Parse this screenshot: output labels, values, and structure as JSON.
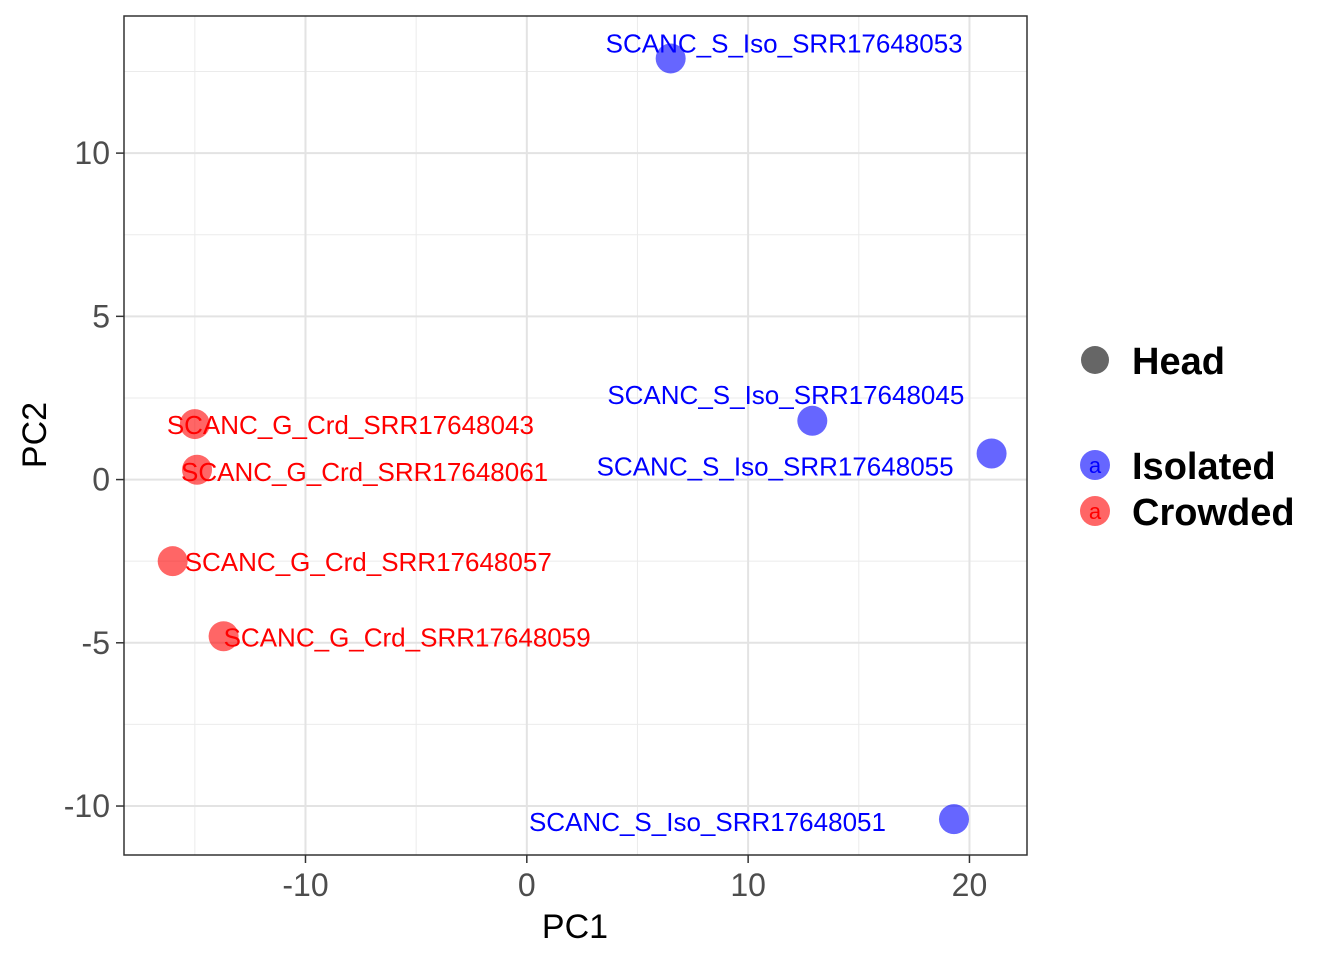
{
  "chart_data": {
    "type": "scatter",
    "xlabel": "PC1",
    "ylabel": "PC2",
    "xlim": [
      -18.2,
      22.6
    ],
    "ylim": [
      -11.5,
      14.2
    ],
    "x_ticks": [
      -10,
      0,
      10,
      20
    ],
    "x_tick_labels": [
      "-10",
      "0",
      "10",
      "20"
    ],
    "y_ticks": [
      -10,
      -5,
      0,
      5,
      10
    ],
    "y_tick_labels": [
      "-10",
      "-5",
      "0",
      "5",
      "10"
    ],
    "grid": true,
    "series": [
      {
        "name": "Isolated",
        "color": "#0000ff",
        "points": [
          {
            "label": "SCANC_S_Iso_SRR17648053",
            "x": 6.5,
            "y": 12.9
          },
          {
            "label": "SCANC_S_Iso_SRR17648045",
            "x": 12.9,
            "y": 1.8
          },
          {
            "label": "SCANC_S_Iso_SRR17648055",
            "x": 21.0,
            "y": 0.8
          },
          {
            "label": "SCANC_S_Iso_SRR17648051",
            "x": 19.3,
            "y": -10.4
          }
        ]
      },
      {
        "name": "Crowded",
        "color": "#ff0000",
        "points": [
          {
            "label": "SCANC_G_Crd_SRR17648043",
            "x": -15.0,
            "y": 1.7
          },
          {
            "label": "SCANC_G_Crd_SRR17648061",
            "x": -14.9,
            "y": 0.3
          },
          {
            "label": "SCANC_G_Crd_SRR17648057",
            "x": -16.0,
            "y": -2.5
          },
          {
            "label": "SCANC_G_Crd_SRR17648059",
            "x": -13.7,
            "y": -4.8
          }
        ]
      }
    ],
    "legend": {
      "position": "right",
      "shape_entry": {
        "label": "Head",
        "color": "#666666"
      },
      "color_entries": [
        {
          "label": "Isolated",
          "color": "#0000ff",
          "key_glyph": "a"
        },
        {
          "label": "Crowded",
          "color": "#ff0000",
          "key_glyph": "a"
        }
      ]
    }
  }
}
